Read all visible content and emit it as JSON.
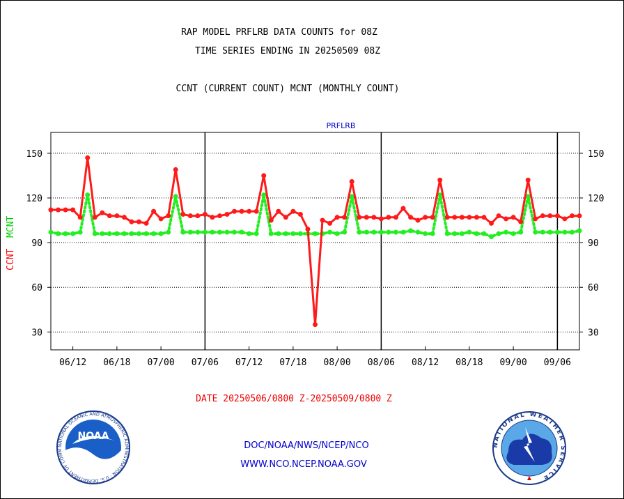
{
  "header": {
    "title_line1": "RAP MODEL PRFLRB DATA COUNTS for 08Z",
    "title_line2": "TIME SERIES ENDING IN 20250509 08Z",
    "subtitle": "CCNT (CURRENT COUNT) MCNT (MONTHLY COUNT)"
  },
  "footer": {
    "date_range": "DATE 20250506/0800 Z-20250509/0800 Z",
    "org_line": "DOC/NOAA/NWS/NCEP/NCO",
    "web_line": "WWW.NCO.NCEP.NOAA.GOV",
    "noaa_logo_text": "NOAA",
    "noaa_ring_text": "NATIONAL OCEANIC AND ATMOSPHERIC ADMINISTRATION · U.S. DEPARTMENT OF COMMERCE",
    "nws_ring_text": "NATIONAL WEATHER SERVICE"
  },
  "colors": {
    "ccnt": "#ff1a1a",
    "mcnt": "#22ee22",
    "ylabel_ccnt": "#ff0000",
    "ylabel_mcnt": "#00cc00",
    "blue_text": "#0000cc",
    "red_text": "#ee0000"
  },
  "chart_data": {
    "type": "line",
    "title": "PRFLRB",
    "ylabel_left_ccnt": "CCNT",
    "ylabel_left_mcnt": "MCNT",
    "ylim": [
      18,
      164
    ],
    "yticks": [
      30,
      60,
      90,
      120,
      150
    ],
    "grid": true,
    "xtick_labels": [
      "06/12",
      "06/18",
      "07/00",
      "07/06",
      "07/12",
      "07/18",
      "08/00",
      "08/06",
      "08/12",
      "08/18",
      "09/00",
      "09/06"
    ],
    "x_range": [
      0,
      72
    ],
    "xtick_positions": [
      3,
      9,
      15,
      21,
      27,
      33,
      39,
      45,
      51,
      57,
      63,
      69
    ],
    "day_boundaries": [
      21,
      45,
      69
    ],
    "series": [
      {
        "name": "CCNT",
        "x": [
          0,
          1,
          2,
          3,
          4,
          5,
          6,
          7,
          8,
          9,
          10,
          11,
          12,
          13,
          14,
          15,
          16,
          17,
          18,
          19,
          20,
          21,
          22,
          23,
          24,
          25,
          26,
          27,
          28,
          29,
          30,
          31,
          32,
          33,
          34,
          35,
          36,
          37,
          38,
          39,
          40,
          41,
          42,
          43,
          44,
          45,
          46,
          47,
          48,
          49,
          50,
          51,
          52,
          53,
          54,
          55,
          56,
          57,
          58,
          59,
          60,
          61,
          62,
          63,
          64,
          65,
          66,
          67,
          68,
          69,
          70,
          71,
          72
        ],
        "values": [
          112,
          112,
          112,
          112,
          107,
          147,
          107,
          110,
          108,
          108,
          107,
          104,
          104,
          103,
          111,
          106,
          108,
          139,
          109,
          108,
          108,
          109,
          107,
          108,
          109,
          111,
          111,
          111,
          111,
          135,
          105,
          111,
          107,
          111,
          109,
          99,
          35,
          105,
          103,
          107,
          107,
          131,
          107,
          107,
          107,
          106,
          107,
          107,
          113,
          107,
          105,
          107,
          107,
          132,
          107,
          107,
          107,
          107,
          107,
          107,
          103,
          108,
          106,
          107,
          104,
          132,
          106,
          108,
          108,
          108,
          106,
          108,
          108
        ]
      },
      {
        "name": "MCNT",
        "x": [
          0,
          1,
          2,
          3,
          4,
          5,
          6,
          7,
          8,
          9,
          10,
          11,
          12,
          13,
          14,
          15,
          16,
          17,
          18,
          19,
          20,
          21,
          22,
          23,
          24,
          25,
          26,
          27,
          28,
          29,
          30,
          31,
          32,
          33,
          34,
          35,
          36,
          37,
          38,
          39,
          40,
          41,
          42,
          43,
          44,
          45,
          46,
          47,
          48,
          49,
          50,
          51,
          52,
          53,
          54,
          55,
          56,
          57,
          58,
          59,
          60,
          61,
          62,
          63,
          64,
          65,
          66,
          67,
          68,
          69,
          70,
          71,
          72
        ],
        "values": [
          97,
          96,
          96,
          96,
          97,
          122,
          96,
          96,
          96,
          96,
          96,
          96,
          96,
          96,
          96,
          96,
          97,
          121,
          97,
          97,
          97,
          97,
          97,
          97,
          97,
          97,
          97,
          96,
          96,
          122,
          96,
          96,
          96,
          96,
          96,
          96,
          96,
          96,
          97,
          96,
          97,
          121,
          97,
          97,
          97,
          97,
          97,
          97,
          97,
          98,
          97,
          96,
          96,
          122,
          96,
          96,
          96,
          97,
          96,
          96,
          94,
          96,
          97,
          96,
          97,
          121,
          97,
          97,
          97,
          97,
          97,
          97,
          98
        ]
      }
    ]
  }
}
